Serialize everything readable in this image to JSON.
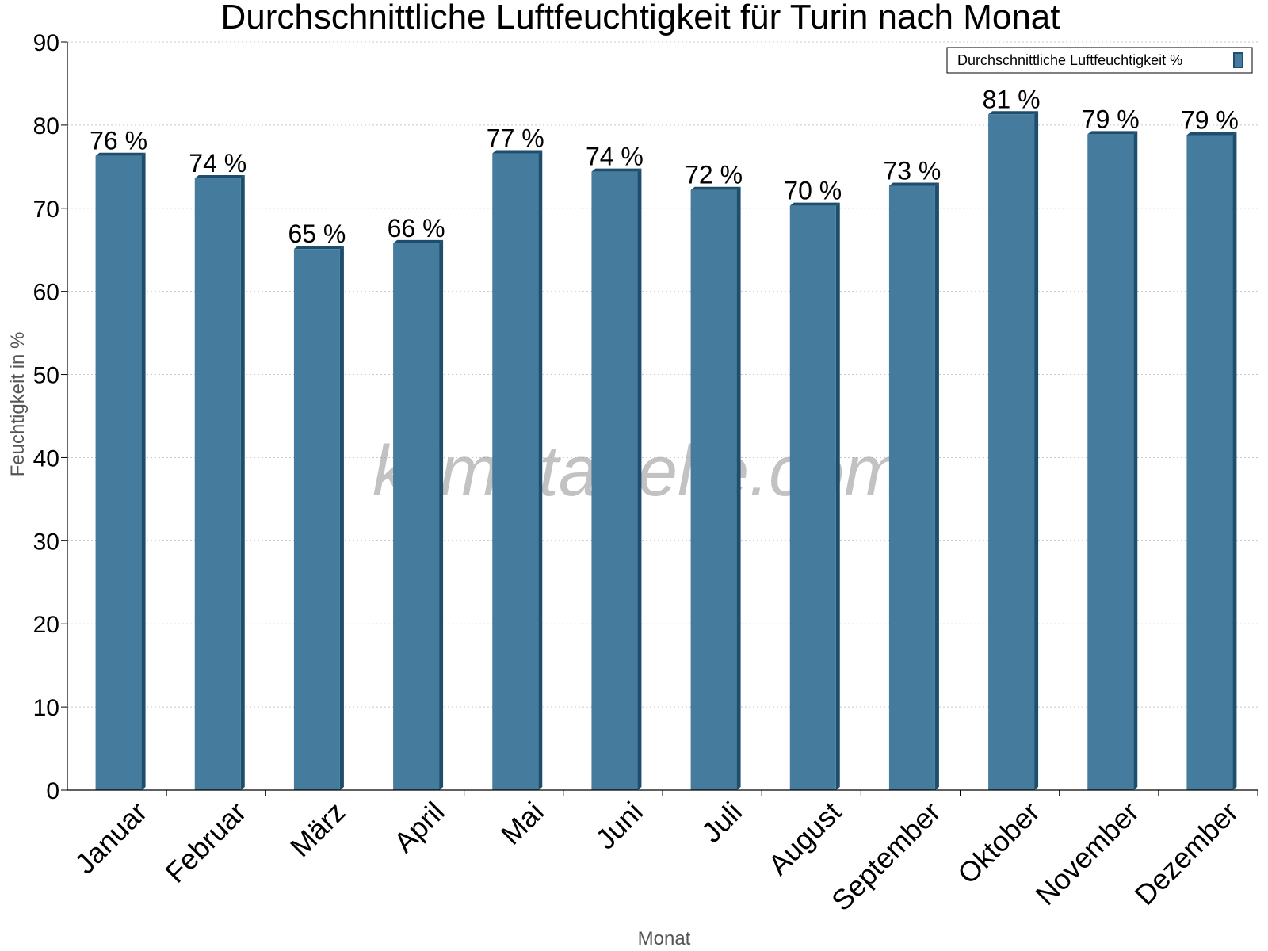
{
  "chart_data": {
    "type": "bar",
    "title": "Durchschnittliche Luftfeuchtigkeit für Turin nach Monat",
    "xlabel": "Monat",
    "ylabel": "Feuchtigkeit in %",
    "ylim": [
      0,
      90
    ],
    "yticks": [
      "0",
      "10",
      "20",
      "30",
      "40",
      "50",
      "60",
      "70",
      "80",
      "90"
    ],
    "categories": [
      "Januar",
      "Februar",
      "März",
      "April",
      "Mai",
      "Juni",
      "Juli",
      "August",
      "September",
      "Oktober",
      "November",
      "Dezember"
    ],
    "values": [
      76.3,
      73.6,
      65.1,
      65.8,
      76.6,
      74.4,
      72.2,
      70.3,
      72.7,
      81.3,
      78.9,
      78.8
    ],
    "labels": [
      "76 %",
      "74 %",
      "65 %",
      "66 %",
      "77 %",
      "74 %",
      "72 %",
      "70 %",
      "73 %",
      "81 %",
      "79 %",
      "79 %"
    ],
    "legend": {
      "label": "Durchschnittliche Luftfeuchtigkeit %",
      "position": "top-right"
    },
    "grid": true,
    "colors": {
      "bar": "#457b9d",
      "bar_dark": "#1d4e6e",
      "grid": "#c8c8c8"
    }
  },
  "watermark": "klimatabelle.com"
}
